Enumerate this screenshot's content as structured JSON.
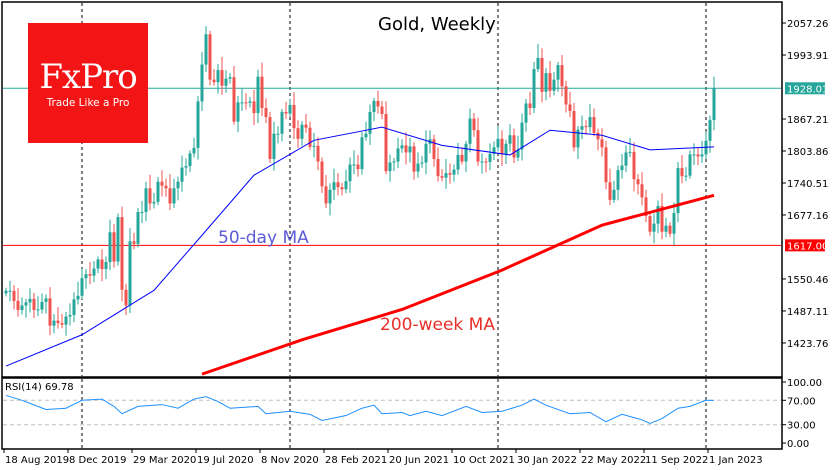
{
  "logo": {
    "brand": "FxPro",
    "tagline": "Trade Like a Pro"
  },
  "chart_data": {
    "type": "candlestick",
    "title": "Gold, Weekly",
    "x_start": "18 Aug 2019",
    "x_step": "1 week",
    "ylim": [
      1360,
      2100
    ],
    "y_ticks": [
      "2057.26",
      "1993.91",
      "1867.21",
      "1803.86",
      "1740.51",
      "1677.16",
      "1550.46",
      "1487.11",
      "1423.76"
    ],
    "x_tick_labels": [
      "18 Aug 2019",
      "8 Dec 2019",
      "29 Mar 2020",
      "19 Jul 2020",
      "8 Nov 2020",
      "28 Feb 2021",
      "20 Jun 2021",
      "10 Oct 2021",
      "30 Jan 2022",
      "22 May 2022",
      "11 Sep 2022",
      "1 Jan 2023"
    ],
    "closes": [
      1527,
      1527,
      1507,
      1489,
      1498,
      1504,
      1511,
      1489,
      1490,
      1505,
      1512,
      1458,
      1468,
      1463,
      1460,
      1476,
      1479,
      1510,
      1517,
      1552,
      1560,
      1557,
      1571,
      1589,
      1570,
      1584,
      1643,
      1585,
      1673,
      1529,
      1498,
      1625,
      1620,
      1683,
      1683,
      1730,
      1700,
      1703,
      1743,
      1735,
      1730,
      1700,
      1730,
      1743,
      1771,
      1774,
      1799,
      1810,
      1902,
      1975,
      2035,
      1945,
      1940,
      1964,
      1933,
      1947,
      1950,
      1862,
      1900,
      1900,
      1899,
      1902,
      1879,
      1951,
      1889,
      1871,
      1788,
      1838,
      1838,
      1881,
      1878,
      1895,
      1849,
      1828,
      1856,
      1850,
      1812,
      1814,
      1783,
      1734,
      1700,
      1727,
      1742,
      1732,
      1728,
      1744,
      1777,
      1777,
      1768,
      1831,
      1838,
      1881,
      1903,
      1892,
      1877,
      1764,
      1781,
      1783,
      1809,
      1815,
      1801,
      1813,
      1763,
      1779,
      1781,
      1818,
      1827,
      1788,
      1754,
      1751,
      1760,
      1757,
      1767,
      1796,
      1783,
      1818,
      1868,
      1845,
      1783,
      1783,
      1782,
      1798,
      1811,
      1828,
      1797,
      1818,
      1835,
      1791,
      1807,
      1860,
      1898,
      1889,
      1966,
      1988,
      1921,
      1958,
      1923,
      1945,
      1974,
      1932,
      1896,
      1883,
      1811,
      1846,
      1853,
      1851,
      1871,
      1840,
      1827,
      1811,
      1742,
      1707,
      1727,
      1766,
      1775,
      1801,
      1802,
      1748,
      1738,
      1712,
      1675,
      1644,
      1660,
      1695,
      1644,
      1656,
      1640,
      1681,
      1770,
      1754,
      1755,
      1797,
      1797,
      1793,
      1797,
      1824,
      1865,
      1928
    ],
    "horizontal_levels": [
      {
        "value": 1928.01,
        "label": "1928.01",
        "color": "#26a69a"
      },
      {
        "value": 1617.0,
        "label": "1617.00",
        "color": "#ff0000"
      }
    ],
    "series": [
      {
        "name": "50-day MA",
        "color": "#0000ff",
        "points_week_value": [
          [
            0,
            1378
          ],
          [
            19,
            1440
          ],
          [
            37,
            1528
          ],
          [
            49,
            1637
          ],
          [
            62,
            1756
          ],
          [
            77,
            1825
          ],
          [
            94,
            1851
          ],
          [
            109,
            1815
          ],
          [
            126,
            1796
          ],
          [
            136,
            1845
          ],
          [
            149,
            1835
          ],
          [
            161,
            1806
          ],
          [
            177,
            1812
          ]
        ]
      },
      {
        "name": "200-week MA",
        "color": "#ff0000",
        "points_week_value": [
          [
            49,
            1362
          ],
          [
            74,
            1430
          ],
          [
            99,
            1490
          ],
          [
            124,
            1568
          ],
          [
            149,
            1657
          ],
          [
            177,
            1716
          ]
        ]
      }
    ],
    "rsi": {
      "label": "RSI(14) 69.78",
      "levels": [
        70,
        30
      ],
      "y_ticks": [
        "100.00",
        "70.00",
        "30.00",
        "0.00"
      ],
      "color": "#1e90ff",
      "points_week_value": [
        [
          0,
          78
        ],
        [
          4,
          70
        ],
        [
          6,
          65
        ],
        [
          10,
          55
        ],
        [
          15,
          57
        ],
        [
          19,
          70
        ],
        [
          24,
          72
        ],
        [
          27,
          60
        ],
        [
          29,
          48
        ],
        [
          33,
          60
        ],
        [
          39,
          63
        ],
        [
          43,
          57
        ],
        [
          47,
          72
        ],
        [
          50,
          76
        ],
        [
          53,
          68
        ],
        [
          56,
          57
        ],
        [
          63,
          60
        ],
        [
          65,
          48
        ],
        [
          71,
          52
        ],
        [
          76,
          47
        ],
        [
          79,
          37
        ],
        [
          85,
          45
        ],
        [
          89,
          57
        ],
        [
          92,
          62
        ],
        [
          94,
          48
        ],
        [
          99,
          50
        ],
        [
          101,
          45
        ],
        [
          105,
          52
        ],
        [
          109,
          45
        ],
        [
          115,
          60
        ],
        [
          119,
          50
        ],
        [
          124,
          52
        ],
        [
          129,
          62
        ],
        [
          132,
          72
        ],
        [
          135,
          62
        ],
        [
          141,
          48
        ],
        [
          146,
          50
        ],
        [
          150,
          35
        ],
        [
          154,
          47
        ],
        [
          159,
          38
        ],
        [
          161,
          32
        ],
        [
          164,
          40
        ],
        [
          168,
          57
        ],
        [
          171,
          60
        ],
        [
          175,
          70
        ],
        [
          177,
          69.78
        ]
      ]
    },
    "up_color": "#26a69a",
    "down_color": "#ef5350"
  }
}
